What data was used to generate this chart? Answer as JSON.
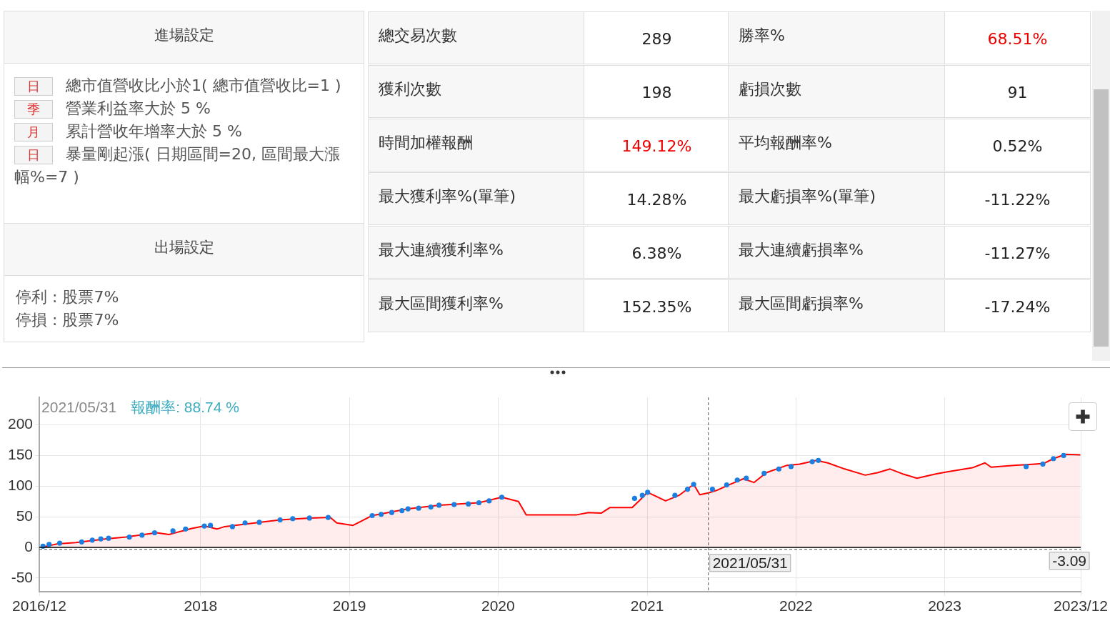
{
  "chart_data": [
    {
      "type": "other",
      "annotations": [
        "進場設定",
        "日",
        "總市值營收比小於1( 總市值營收比=1 )",
        "季",
        "營業利益率大於 5 %",
        "月",
        "累計營收年增率大於 5 %",
        "日",
        "暴量剛起漲( 日期區間=20, 區間最大漲幅%=7 )",
        "出場設定",
        "停利 : 股票7%",
        "停損 : 股票7%",
        "總交易次數",
        "289",
        "勝率%",
        "68.51%",
        "獲利次數",
        "198",
        "虧損次數",
        "91",
        "時間加權報酬",
        "149.12%",
        "平均報酬率%",
        "0.52%",
        "最大獲利率%(單筆)",
        "14.28%",
        "最大虧損率%(單筆)",
        "-11.22%",
        "最大連續獲利率%",
        "6.38%",
        "最大連續虧損率%",
        "-11.27%",
        "最大區間獲利率%",
        "152.35%",
        "最大區間虧損率%",
        "-17.24%"
      ]
    },
    {
      "type": "area",
      "xlim": [
        "2016-12-01",
        "2023-12-01"
      ],
      "ylim": [
        -72,
        245
      ],
      "xticks": [
        {
          "value": "2016-12-01",
          "label": "2016/12"
        },
        {
          "value": "2018-01-01",
          "label": "2018"
        },
        {
          "value": "2019-01-01",
          "label": "2019"
        },
        {
          "value": "2020-01-01",
          "label": "2020"
        },
        {
          "value": "2021-01-01",
          "label": "2021"
        },
        {
          "value": "2022-01-01",
          "label": "2022"
        },
        {
          "value": "2023-01-01",
          "label": "2023"
        },
        {
          "value": "2023-12-01",
          "label": "2023/12"
        }
      ],
      "yticks": [
        -50,
        0,
        50,
        100,
        150,
        200
      ],
      "grid": true,
      "legend": false,
      "annotations": [
        "2021/05/31",
        "報酬率: 88.74 %"
      ],
      "ref_lines": [
        {
          "axis": "y",
          "value": 0,
          "color": "#000000",
          "line_style": "solid"
        },
        {
          "axis": "y",
          "value": -3.09,
          "label": "-3.09",
          "color": "#555555",
          "line_style": "dashed"
        },
        {
          "axis": "x",
          "value": "2021-05-31",
          "label": "2021/05/31",
          "color": "#555555",
          "line_style": "dashed"
        }
      ],
      "series": [
        {
          "type": "area",
          "color": "#ff0000",
          "marker": "none",
          "x": [
            "2016-12-05",
            "2017-01-15",
            "2017-03-01",
            "2017-05-15",
            "2017-07-01",
            "2017-09-15",
            "2017-10-15",
            "2017-12-10",
            "2018-01-10",
            "2018-02-10",
            "2018-03-01",
            "2018-05-25",
            "2018-07-15",
            "2018-09-25",
            "2018-11-15",
            "2018-12-01",
            "2019-01-10",
            "2019-02-26",
            "2019-05-25",
            "2019-08-09",
            "2019-11-15",
            "2020-01-10",
            "2020-02-20",
            "2020-03-10",
            "2020-07-10",
            "2020-08-10",
            "2020-09-10",
            "2020-10-01",
            "2020-11-25",
            "2020-12-15",
            "2021-01-02",
            "2021-02-15",
            "2021-03-20",
            "2021-04-25",
            "2021-05-10",
            "2021-05-31",
            "2021-06-20",
            "2021-07-20",
            "2021-08-25",
            "2021-09-20",
            "2021-10-20",
            "2021-12-10",
            "2022-01-10",
            "2022-02-20",
            "2022-03-20",
            "2022-05-01",
            "2022-06-20",
            "2022-07-20",
            "2022-08-20",
            "2022-09-20",
            "2022-10-25",
            "2022-12-10",
            "2023-01-05",
            "2023-03-10",
            "2023-04-10",
            "2023-04-25",
            "2023-06-20",
            "2023-08-10",
            "2023-09-01",
            "2023-09-25",
            "2023-10-25",
            "2023-11-30"
          ],
          "values": [
            0,
            6,
            8,
            14,
            17,
            24,
            21,
            31,
            35,
            30,
            34,
            41,
            45,
            48,
            49,
            40,
            36,
            52,
            63,
            69,
            73,
            82,
            75,
            53,
            53,
            57,
            56,
            65,
            65,
            78,
            90,
            76,
            85,
            103,
            86,
            89,
            93,
            102,
            112,
            106,
            122,
            134,
            136,
            142,
            138,
            128,
            118,
            122,
            128,
            120,
            113,
            120,
            123,
            130,
            138,
            131,
            134,
            136,
            137,
            145,
            152,
            151
          ]
        },
        {
          "type": "scatter",
          "color": "#1a7fe0",
          "marker": "circle",
          "x": [
            "2016-12-10",
            "2016-12-25",
            "2017-01-20",
            "2017-03-15",
            "2017-04-10",
            "2017-05-01",
            "2017-05-20",
            "2017-07-10",
            "2017-08-10",
            "2017-09-10",
            "2017-10-25",
            "2017-11-25",
            "2018-01-10",
            "2018-01-25",
            "2018-03-20",
            "2018-04-20",
            "2018-05-25",
            "2018-07-15",
            "2018-08-15",
            "2018-09-25",
            "2018-11-10",
            "2019-02-26",
            "2019-03-20",
            "2019-04-15",
            "2019-05-10",
            "2019-05-25",
            "2019-06-20",
            "2019-07-20",
            "2019-08-09",
            "2019-09-15",
            "2019-10-20",
            "2019-11-15",
            "2019-12-10",
            "2020-01-10",
            "2020-12-01",
            "2020-12-20",
            "2021-01-02",
            "2021-03-10",
            "2021-04-10",
            "2021-04-25",
            "2021-06-10",
            "2021-07-15",
            "2021-08-10",
            "2021-09-01",
            "2021-10-15",
            "2021-11-20",
            "2021-12-20",
            "2022-02-10",
            "2022-02-25",
            "2023-07-20",
            "2023-08-30",
            "2023-09-25",
            "2023-10-20"
          ],
          "values": [
            2,
            5,
            7,
            9,
            12,
            14,
            15,
            17,
            20,
            24,
            27,
            30,
            35,
            36,
            34,
            40,
            41,
            45,
            47,
            48,
            49,
            52,
            54,
            57,
            60,
            63,
            64,
            66,
            69,
            70,
            71,
            73,
            76,
            82,
            80,
            85,
            90,
            85,
            95,
            103,
            95,
            102,
            110,
            113,
            121,
            128,
            132,
            140,
            142,
            132,
            136,
            145,
            150
          ]
        }
      ]
    }
  ]
}
